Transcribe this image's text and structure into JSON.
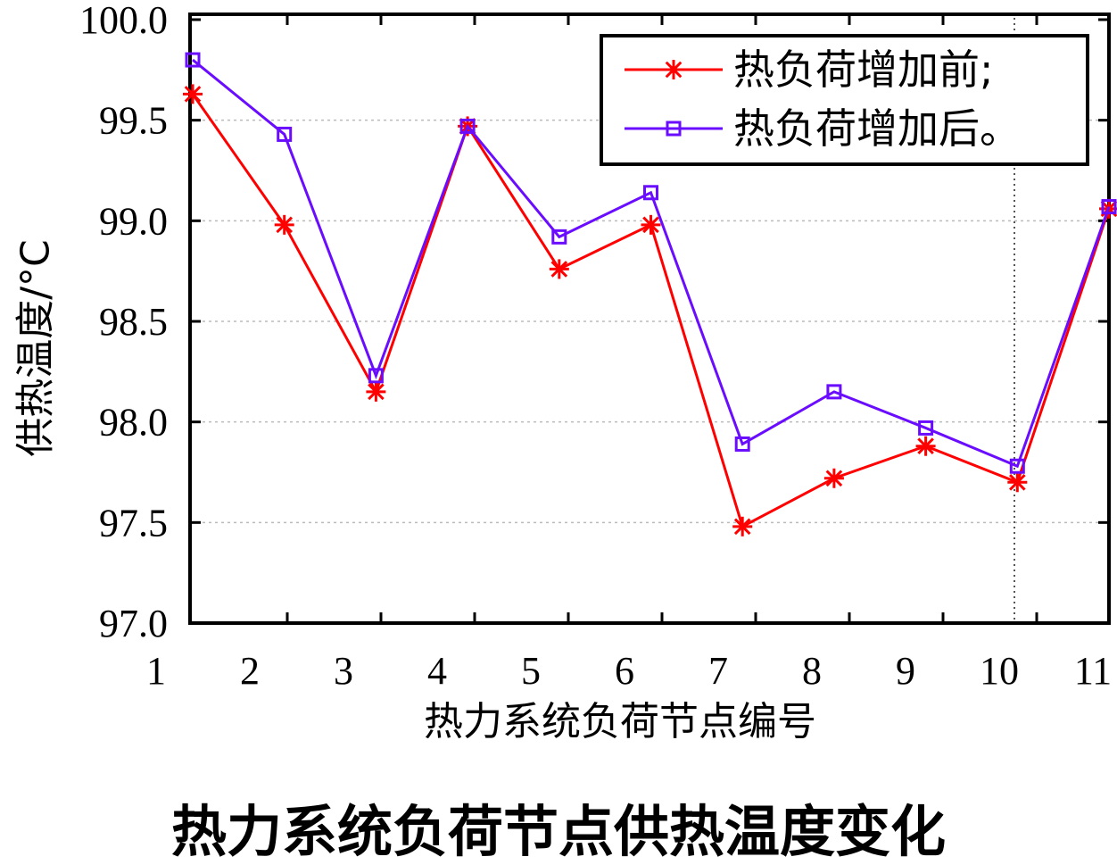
{
  "chart_data": {
    "type": "line",
    "title": "热力系统负荷节点供热温度变化",
    "xlabel": "热力系统负荷节点编号",
    "ylabel": "供热温度/°C",
    "x": [
      1,
      2,
      3,
      4,
      5,
      6,
      7,
      8,
      9,
      10,
      11
    ],
    "x_tick_labels": [
      "1",
      "2",
      "3",
      "4",
      "5",
      "6",
      "7",
      "8",
      "9",
      "10",
      "11"
    ],
    "ylim": [
      97.0,
      100.0
    ],
    "y_tick_labels": [
      "97.0",
      "97.5",
      "98.0",
      "98.5",
      "99.0",
      "99.5",
      "100.0"
    ],
    "grid": "horizontal dotted",
    "legend_position": "top-right",
    "series": [
      {
        "name": "热负荷增加前;",
        "color": "#ff0000",
        "marker": "asterisk",
        "values": [
          99.63,
          98.98,
          98.15,
          99.47,
          98.76,
          98.98,
          97.48,
          97.72,
          97.88,
          97.7,
          99.06
        ]
      },
      {
        "name": "热负荷增加后。",
        "color": "#6a0dff",
        "marker": "square",
        "values": [
          99.8,
          99.43,
          98.23,
          99.47,
          98.92,
          99.14,
          97.89,
          98.15,
          97.97,
          97.78,
          99.07
        ]
      }
    ]
  }
}
